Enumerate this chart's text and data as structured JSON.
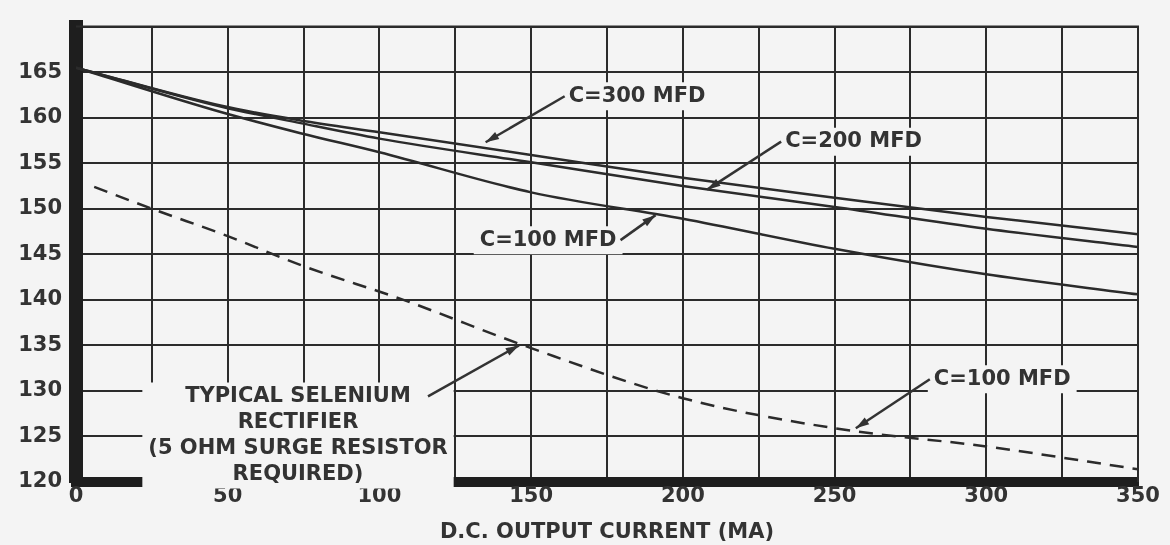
{
  "chart_data": {
    "type": "line",
    "xlabel": "D.C. OUTPUT CURRENT (MA)",
    "xlim": [
      0,
      350
    ],
    "xticks": [
      0,
      {
        "value": 25,
        "label": null
      },
      50,
      {
        "value": 75,
        "label": null
      },
      100,
      {
        "value": 125,
        "label": null
      },
      150,
      {
        "value": 175,
        "label": null
      },
      200,
      {
        "value": 225,
        "label": null
      },
      250,
      {
        "value": 275,
        "label": null
      },
      300,
      {
        "value": 325,
        "label": null
      },
      350
    ],
    "ylim": [
      120,
      170
    ],
    "yticks": [
      120,
      125,
      130,
      135,
      140,
      145,
      150,
      155,
      160,
      165,
      {
        "value": 170,
        "label": null
      }
    ],
    "grid": true,
    "marker": "none",
    "series": [
      {
        "color": "#2b2b2b",
        "line_style": "solid",
        "x": [
          0,
          48,
          74,
          100,
          150,
          200,
          250,
          300,
          350
        ],
        "values": [
          165.5,
          161.3,
          159.7,
          158.4,
          155.9,
          153.4,
          151.2,
          149.1,
          147.2
        ]
      },
      {
        "color": "#2b2b2b",
        "line_style": "solid",
        "x": [
          0,
          48,
          74,
          100,
          150,
          200,
          250,
          300,
          350
        ],
        "values": [
          165.5,
          161.2,
          159.4,
          157.7,
          155.1,
          152.5,
          150.2,
          147.8,
          145.8
        ]
      },
      {
        "color": "#2b2b2b",
        "line_style": "solid",
        "x": [
          0,
          48,
          74,
          100,
          150,
          200,
          250,
          300,
          350
        ],
        "values": [
          165.5,
          160.6,
          158.3,
          156.2,
          151.8,
          148.9,
          145.6,
          142.8,
          140.6
        ]
      },
      {
        "color": "#2b2b2b",
        "line_style": "dashed",
        "x": [
          6,
          25,
          50,
          75,
          107,
          150,
          200,
          250,
          300,
          350
        ],
        "values": [
          152.4,
          150,
          147,
          143.7,
          140.1,
          134.7,
          129.2,
          125.9,
          123.9,
          121.4
        ]
      }
    ],
    "annotations": [
      {
        "text": "C=300 MFD",
        "x": 135,
        "y": 157.3
      },
      {
        "text": "C=200 MFD",
        "x": 208,
        "y": 152.1
      },
      {
        "text": "C=100 MFD",
        "x": 191,
        "y": 149.3
      },
      {
        "text": "TYPICAL SELENIUM\nRECTIFIER\n(5 OHM SURGE RESISTOR\nREQUIRED)",
        "x": 146,
        "y": 135
      },
      {
        "text": "C=100 MFD",
        "x": 257,
        "y": 125.9
      }
    ]
  }
}
